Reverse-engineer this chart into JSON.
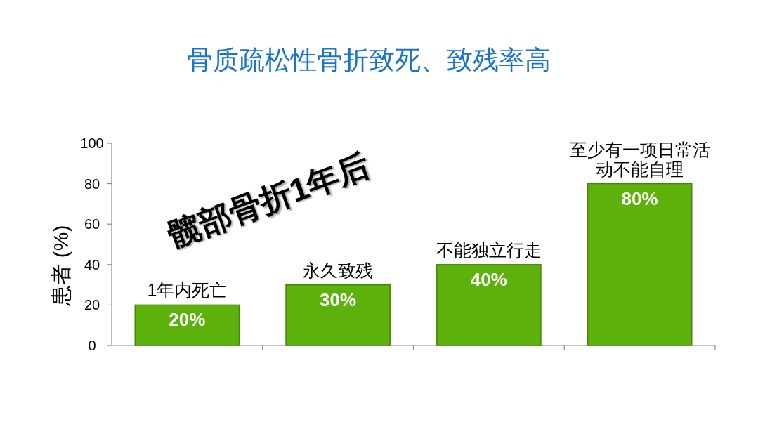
{
  "chart_data": {
    "type": "bar",
    "title": "骨质疏松性骨折致死、致残率高",
    "ylabel": "患者 (%)",
    "annotations": [
      "髋部骨折1年后"
    ],
    "categories": [
      "1年内死亡",
      "永久致残",
      "不能独立行走",
      "至少有一项日常活动不能自理"
    ],
    "values": [
      20,
      30,
      40,
      80
    ],
    "value_labels": [
      "20%",
      "30%",
      "40%",
      "80%"
    ],
    "color": "#5cb20b",
    "ylim": [
      0,
      100
    ],
    "yticks": [
      0,
      20,
      40,
      60,
      80,
      100
    ]
  }
}
